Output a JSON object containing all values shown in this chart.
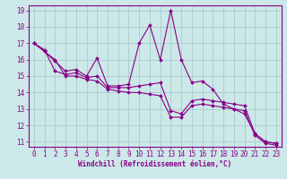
{
  "xlabel": "Windchill (Refroidissement éolien,°C)",
  "xlim": [
    -0.5,
    23.5
  ],
  "ylim": [
    10.7,
    19.3
  ],
  "xticks": [
    0,
    1,
    2,
    3,
    4,
    5,
    6,
    7,
    8,
    9,
    10,
    11,
    12,
    13,
    14,
    15,
    16,
    17,
    18,
    19,
    20,
    21,
    22,
    23
  ],
  "yticks": [
    11,
    12,
    13,
    14,
    15,
    16,
    17,
    18,
    19
  ],
  "background_color": "#cce8e8",
  "grid_color": "#aacccc",
  "line_color": "#880088",
  "series": [
    [
      17.0,
      16.5,
      15.9,
      15.3,
      15.4,
      15.0,
      16.1,
      14.4,
      14.4,
      14.5,
      17.0,
      18.1,
      16.0,
      19.0,
      16.0,
      14.6,
      14.7,
      14.2,
      13.3,
      13.0,
      12.7,
      11.5,
      11.0,
      10.9
    ],
    [
      17.0,
      16.6,
      15.3,
      15.1,
      15.2,
      14.9,
      15.0,
      14.3,
      14.3,
      14.3,
      14.4,
      14.5,
      14.6,
      12.9,
      12.7,
      13.5,
      13.6,
      13.5,
      13.4,
      13.3,
      13.2,
      11.5,
      11.0,
      10.9
    ],
    [
      17.0,
      16.5,
      16.0,
      15.0,
      15.0,
      14.8,
      14.7,
      14.2,
      14.1,
      14.0,
      14.0,
      13.9,
      13.8,
      12.5,
      12.5,
      13.2,
      13.3,
      13.2,
      13.1,
      13.0,
      12.9,
      11.4,
      10.9,
      10.8
    ]
  ],
  "tick_fontsize": 5.5,
  "xlabel_fontsize": 5.5,
  "marker_size": 2.0,
  "linewidth": 0.8
}
